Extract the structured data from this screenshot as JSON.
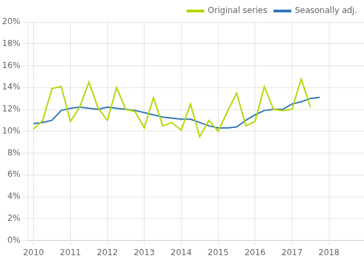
{
  "chart_data": {
    "type": "line",
    "x": [
      2010.0,
      2010.25,
      2010.5,
      2010.75,
      2011.0,
      2011.25,
      2011.5,
      2011.75,
      2012.0,
      2012.25,
      2012.5,
      2012.75,
      2013.0,
      2013.25,
      2013.5,
      2013.75,
      2014.0,
      2014.25,
      2014.5,
      2014.75,
      2015.0,
      2015.25,
      2015.5,
      2015.75,
      2016.0,
      2016.25,
      2016.5,
      2016.75,
      2017.0,
      2017.25,
      2017.5,
      2017.75
    ],
    "series": [
      {
        "name": "Original series",
        "color": "#b8d400",
        "values": [
          10.2,
          11.0,
          13.9,
          14.1,
          10.9,
          12.2,
          14.5,
          12.1,
          11.0,
          14.0,
          12.0,
          11.8,
          10.3,
          13.1,
          10.5,
          10.8,
          10.1,
          12.5,
          9.5,
          11.0,
          10.0,
          11.8,
          13.5,
          10.5,
          10.9,
          14.1,
          12.0,
          11.9,
          12.0,
          14.8,
          12.2,
          null
        ]
      },
      {
        "name": "Seasonally adj.",
        "color": "#2e75b6",
        "values": [
          10.7,
          10.8,
          11.0,
          11.9,
          12.1,
          12.2,
          12.1,
          12.0,
          12.2,
          12.1,
          12.0,
          11.9,
          11.7,
          11.5,
          11.3,
          11.2,
          11.1,
          11.1,
          10.8,
          10.5,
          10.3,
          10.3,
          10.4,
          11.0,
          11.5,
          11.9,
          12.0,
          12.0,
          12.5,
          12.7,
          13.0,
          13.1
        ]
      }
    ],
    "xlim": [
      2009.85,
      2018.95
    ],
    "xticks": [
      2010,
      2011,
      2012,
      2013,
      2014,
      2015,
      2016,
      2017,
      2018
    ],
    "ylim": [
      0,
      20
    ],
    "yticks": [
      {
        "value": 0,
        "label": "0%"
      },
      {
        "value": 2,
        "label": "2%"
      },
      {
        "value": 4,
        "label": "4%"
      },
      {
        "value": 6,
        "label": "6%"
      },
      {
        "value": 8,
        "label": "8%"
      },
      {
        "value": 10,
        "label": "10%"
      },
      {
        "value": 12,
        "label": "12%"
      },
      {
        "value": 14,
        "label": "14%"
      },
      {
        "value": 16,
        "label": "16%"
      },
      {
        "value": 18,
        "label": "18%"
      },
      {
        "value": 20,
        "label": "20%"
      }
    ],
    "grid": true,
    "legend": "upper right"
  }
}
